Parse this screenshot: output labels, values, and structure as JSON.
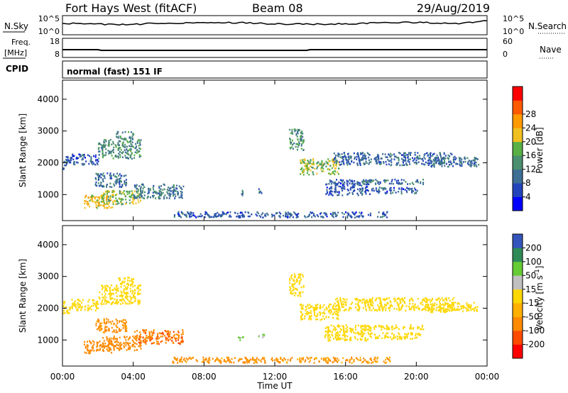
{
  "header": {
    "station": "Fort Hays West (fitACF)",
    "beam": "Beam 08",
    "date": "29/Aug/2019"
  },
  "param_strip": {
    "nsky_label": "N.Sky",
    "nsky_ticks": [
      "10^5",
      "10^0"
    ],
    "nsearch_label": "N.Search",
    "nsearch_ticks": [
      "10^5",
      "10^0"
    ],
    "freq_label": "Freq.",
    "freq_unit": "[MHz]",
    "freq_ticks": [
      "18",
      "8"
    ],
    "nave_label": "Nave",
    "nave_ticks": [
      "60",
      "0"
    ],
    "cpid_label": "CPID",
    "cpid_text": "normal (fast) 151 IF"
  },
  "colors": {
    "power": [
      "#0000ff",
      "#2244bb",
      "#3d6e94",
      "#4a8f6f",
      "#58b044",
      "#f0c020",
      "#ff9a00",
      "#ff5a00",
      "#ff0000"
    ],
    "velocity": [
      "#ff0000",
      "#ff4a00",
      "#ff8a00",
      "#ffb000",
      "#ffd700",
      "#c0c0c0",
      "#66cc33",
      "#2e8b57",
      "#3355bb",
      "#1e2a99"
    ],
    "ground": "#808080"
  },
  "chart_data": [
    {
      "type": "heatmap",
      "name": "power",
      "ylabel": "Slant Range [km]",
      "xlabel": "Time UT",
      "xlim": [
        0,
        24
      ],
      "ylim": [
        180,
        4600
      ],
      "x_ticks": [
        "00:00",
        "04:00",
        "08:00",
        "12:00",
        "16:00",
        "20:00",
        "00:00"
      ],
      "y_ticks": [
        "1000",
        "2000",
        "3000",
        "4000"
      ],
      "colorbar": {
        "label": "Power [dB]",
        "ticks": [
          "4",
          "8",
          "12",
          "16",
          "20",
          "24",
          "28"
        ],
        "range": [
          0,
          30
        ]
      },
      "regions": [
        {
          "t": [
            0.0,
            0.4
          ],
          "r": [
            1800,
            2250
          ],
          "v": 10
        },
        {
          "t": [
            0.4,
            2.0
          ],
          "r": [
            1950,
            2300
          ],
          "v": 9
        },
        {
          "t": [
            2.0,
            4.4
          ],
          "r": [
            2150,
            2750
          ],
          "v": 14
        },
        {
          "t": [
            3.0,
            4.0
          ],
          "r": [
            2750,
            3000
          ],
          "v": 13
        },
        {
          "t": [
            1.8,
            3.6
          ],
          "r": [
            1250,
            1700
          ],
          "v": 11
        },
        {
          "t": [
            1.2,
            2.8
          ],
          "r": [
            600,
            1000
          ],
          "v": 22
        },
        {
          "t": [
            2.2,
            4.4
          ],
          "r": [
            700,
            1150
          ],
          "v": 18
        },
        {
          "t": [
            4.0,
            6.8
          ],
          "r": [
            900,
            1350
          ],
          "v": 12
        },
        {
          "t": [
            6.2,
            18.5
          ],
          "r": [
            300,
            480
          ],
          "v": 9
        },
        {
          "t": [
            9.9,
            10.2
          ],
          "r": [
            1000,
            1150
          ],
          "v": 11
        },
        {
          "t": [
            11.0,
            11.4
          ],
          "r": [
            1050,
            1200
          ],
          "v": 10
        },
        {
          "t": [
            12.8,
            13.6
          ],
          "r": [
            2400,
            3100
          ],
          "v": 14
        },
        {
          "t": [
            13.4,
            15.6
          ],
          "r": [
            1650,
            2150
          ],
          "v": 18
        },
        {
          "t": [
            15.3,
            22.2
          ],
          "r": [
            1950,
            2350
          ],
          "v": 10
        },
        {
          "t": [
            14.8,
            17.4
          ],
          "r": [
            1000,
            1500
          ],
          "v": 9
        },
        {
          "t": [
            16.8,
            20.4
          ],
          "r": [
            1350,
            1500
          ],
          "v": 11
        },
        {
          "t": [
            17.4,
            20.2
          ],
          "r": [
            1050,
            1250
          ],
          "v": 9
        },
        {
          "t": [
            20.6,
            23.5
          ],
          "r": [
            1900,
            2200
          ],
          "v": 11
        }
      ]
    },
    {
      "type": "heatmap",
      "name": "velocity",
      "ylabel": "Slant Range [km]",
      "xlabel": "Time UT",
      "xlim": [
        0,
        24
      ],
      "ylim": [
        180,
        4600
      ],
      "x_ticks": [
        "00:00",
        "04:00",
        "08:00",
        "12:00",
        "16:00",
        "20:00",
        "00:00"
      ],
      "y_ticks": [
        "1000",
        "2000",
        "3000",
        "4000"
      ],
      "colorbar": {
        "label": "Velocity [m s",
        "label_sup": "-1",
        "label_end": "]",
        "ticks": [
          "-200",
          "-100",
          "-50",
          "-15",
          "15",
          "50",
          "100",
          "200"
        ],
        "range": [
          -250,
          250
        ]
      },
      "regions": [
        {
          "t": [
            0.0,
            0.4
          ],
          "r": [
            1800,
            2250
          ],
          "v": 0
        },
        {
          "t": [
            0.4,
            2.0
          ],
          "r": [
            1950,
            2300
          ],
          "v": 0
        },
        {
          "t": [
            2.0,
            4.4
          ],
          "r": [
            2150,
            2750
          ],
          "v": 0
        },
        {
          "t": [
            3.0,
            4.0
          ],
          "r": [
            2750,
            3000
          ],
          "v": 0
        },
        {
          "t": [
            1.8,
            3.6
          ],
          "r": [
            1250,
            1700
          ],
          "v": -40
        },
        {
          "t": [
            1.2,
            2.8
          ],
          "r": [
            600,
            1000
          ],
          "v": -55
        },
        {
          "t": [
            2.2,
            4.4
          ],
          "r": [
            700,
            1150
          ],
          "v": -45
        },
        {
          "t": [
            4.0,
            6.8
          ],
          "r": [
            900,
            1350
          ],
          "v": -70
        },
        {
          "t": [
            6.2,
            18.5
          ],
          "r": [
            300,
            480
          ],
          "v": -35
        },
        {
          "t": [
            9.9,
            10.2
          ],
          "r": [
            1000,
            1150
          ],
          "v": 30
        },
        {
          "t": [
            11.0,
            11.4
          ],
          "r": [
            1050,
            1200
          ],
          "v": 30
        },
        {
          "t": [
            12.8,
            13.6
          ],
          "r": [
            2400,
            3100
          ],
          "v": 0
        },
        {
          "t": [
            13.4,
            15.6
          ],
          "r": [
            1650,
            2150
          ],
          "v": 0
        },
        {
          "t": [
            15.3,
            22.2
          ],
          "r": [
            1950,
            2350
          ],
          "v": 0
        },
        {
          "t": [
            14.8,
            17.4
          ],
          "r": [
            1000,
            1500
          ],
          "v": 0
        },
        {
          "t": [
            16.8,
            20.4
          ],
          "r": [
            1350,
            1500
          ],
          "v": 0
        },
        {
          "t": [
            17.4,
            20.2
          ],
          "r": [
            1050,
            1250
          ],
          "v": 0
        },
        {
          "t": [
            20.6,
            23.5
          ],
          "r": [
            1900,
            2200
          ],
          "v": 0
        }
      ]
    }
  ]
}
